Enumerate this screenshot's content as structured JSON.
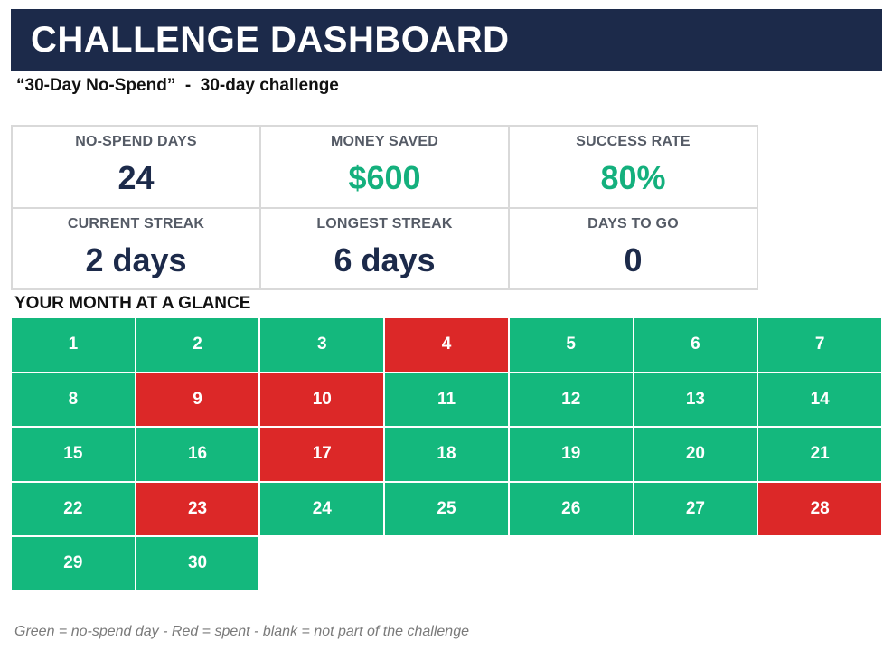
{
  "header": {
    "title": "CHALLENGE DASHBOARD"
  },
  "subtitle": "“30-Day No-Spend”  -  30-day challenge",
  "stats": [
    {
      "label": "NO-SPEND DAYS",
      "value": "24",
      "accent": false
    },
    {
      "label": "MONEY SAVED",
      "value": "$600",
      "accent": true
    },
    {
      "label": "SUCCESS RATE",
      "value": "80%",
      "accent": true
    },
    {
      "label": "CURRENT STREAK",
      "value": "2 days",
      "accent": false
    },
    {
      "label": "LONGEST STREAK",
      "value": "6 days",
      "accent": false
    },
    {
      "label": "DAYS TO GO",
      "value": "0",
      "accent": false
    }
  ],
  "calendar": {
    "title": "YOUR MONTH AT A GLANCE",
    "days": [
      {
        "day": "1",
        "status": "green"
      },
      {
        "day": "2",
        "status": "green"
      },
      {
        "day": "3",
        "status": "green"
      },
      {
        "day": "4",
        "status": "red"
      },
      {
        "day": "5",
        "status": "green"
      },
      {
        "day": "6",
        "status": "green"
      },
      {
        "day": "7",
        "status": "green"
      },
      {
        "day": "8",
        "status": "green"
      },
      {
        "day": "9",
        "status": "red"
      },
      {
        "day": "10",
        "status": "red"
      },
      {
        "day": "11",
        "status": "green"
      },
      {
        "day": "12",
        "status": "green"
      },
      {
        "day": "13",
        "status": "green"
      },
      {
        "day": "14",
        "status": "green"
      },
      {
        "day": "15",
        "status": "green"
      },
      {
        "day": "16",
        "status": "green"
      },
      {
        "day": "17",
        "status": "red"
      },
      {
        "day": "18",
        "status": "green"
      },
      {
        "day": "19",
        "status": "green"
      },
      {
        "day": "20",
        "status": "green"
      },
      {
        "day": "21",
        "status": "green"
      },
      {
        "day": "22",
        "status": "green"
      },
      {
        "day": "23",
        "status": "red"
      },
      {
        "day": "24",
        "status": "green"
      },
      {
        "day": "25",
        "status": "green"
      },
      {
        "day": "26",
        "status": "green"
      },
      {
        "day": "27",
        "status": "green"
      },
      {
        "day": "28",
        "status": "red"
      },
      {
        "day": "29",
        "status": "green"
      },
      {
        "day": "30",
        "status": "green"
      }
    ]
  },
  "legend": "Green = no-spend day  -  Red = spent  -  blank = not part of the challenge",
  "colors": {
    "banner": "#1c2a4a",
    "green": "#14b87d",
    "red": "#dc2828",
    "accent_text": "#14b07d"
  }
}
